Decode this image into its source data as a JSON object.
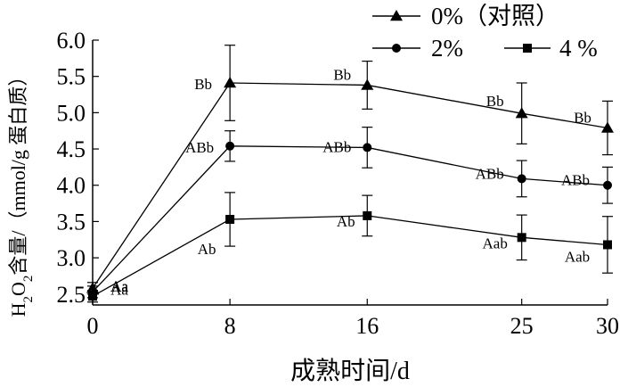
{
  "chart_data": {
    "type": "line",
    "x": [
      0,
      8,
      16,
      25,
      30
    ],
    "xticks": [
      "0",
      "8",
      "16",
      "25",
      "30"
    ],
    "xlabel": "成熟时间/d",
    "ylabel": "H2O2含量/（mmol/g 蛋白质）",
    "ylabel_parts": {
      "h": "H",
      "sub1": "2",
      "o": "O",
      "sub2": "2",
      "rest": "含量/（mmol/g 蛋白质）"
    },
    "ylim": [
      2.35,
      6.0
    ],
    "yticks": [
      "2.5",
      "3.0",
      "3.5",
      "4.0",
      "4.5",
      "5.0",
      "5.5",
      "6.0"
    ],
    "series": [
      {
        "name": "0%（对照）",
        "marker": "triangle",
        "values": [
          2.58,
          5.41,
          5.38,
          4.99,
          4.79
        ],
        "errors": [
          0.08,
          0.52,
          0.33,
          0.42,
          0.37
        ],
        "labels": [
          "Aa",
          "Bb",
          "Bb",
          "Bb",
          "Bb"
        ]
      },
      {
        "name": "2%",
        "marker": "circle",
        "values": [
          2.53,
          4.54,
          4.52,
          4.09,
          4.0
        ],
        "errors": [
          0.08,
          0.21,
          0.28,
          0.25,
          0.25
        ],
        "labels": [
          "Aa",
          "ABb",
          "ABb",
          "ABb",
          "ABb"
        ]
      },
      {
        "name": "4 %",
        "marker": "square",
        "values": [
          2.47,
          3.53,
          3.58,
          3.28,
          3.18
        ],
        "errors": [
          0.08,
          0.37,
          0.28,
          0.31,
          0.39
        ],
        "labels": [
          "Aa",
          "Ab",
          "Ab",
          "Aab",
          "Aab"
        ]
      }
    ],
    "grid": false,
    "legend": "top-right"
  }
}
